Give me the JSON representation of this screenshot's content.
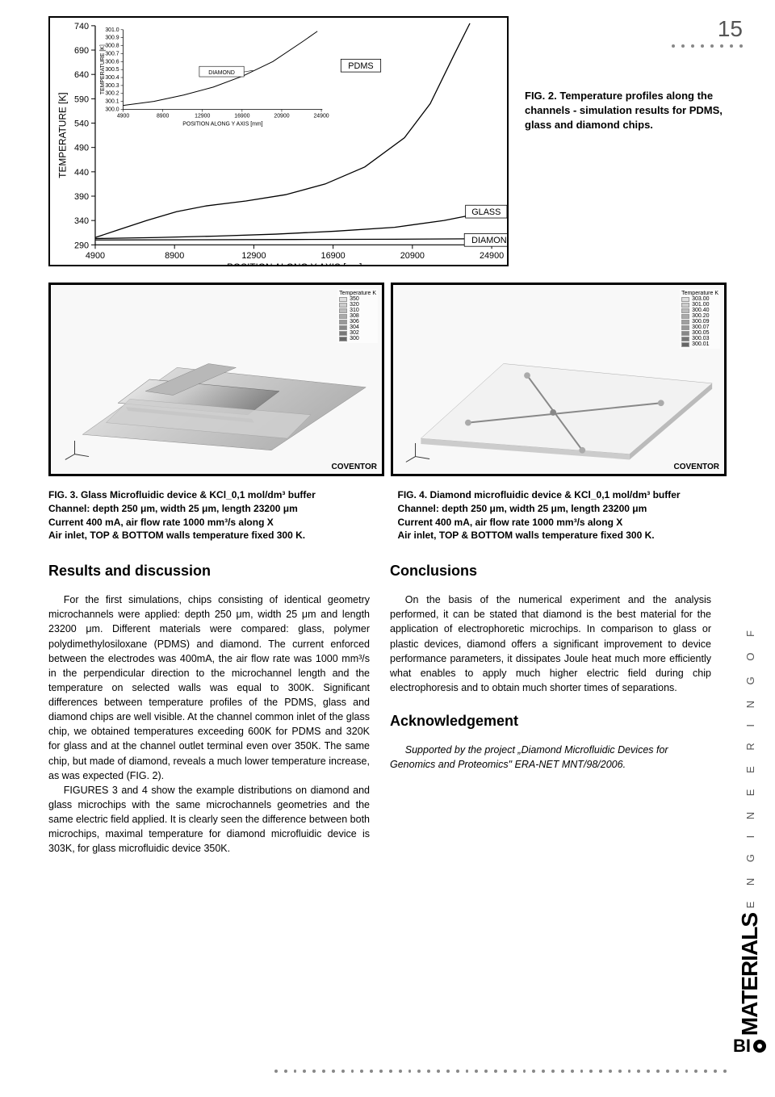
{
  "page_number": "15",
  "fig2": {
    "caption": "FIG. 2. Temperature profiles along the channels - simulation results for PDMS, glass and diamond chips.",
    "ylabel": "TEMPERATURE [K]",
    "xlabel": "POSITION ALONG Y AXIS [μm]",
    "x_ticks": [
      "4900",
      "8900",
      "12900",
      "16900",
      "20900",
      "24900"
    ],
    "y_ticks": [
      "290",
      "340",
      "390",
      "440",
      "490",
      "540",
      "590",
      "640",
      "690",
      "740"
    ],
    "xlim": [
      4900,
      25000
    ],
    "ylim": [
      290,
      740
    ],
    "annotations": [
      "PDMS",
      "GLASS",
      "DIAMOND"
    ],
    "pdms_curve": [
      [
        4900,
        305
      ],
      [
        6000,
        320
      ],
      [
        7500,
        340
      ],
      [
        9000,
        358
      ],
      [
        10500,
        370
      ],
      [
        12500,
        380
      ],
      [
        14500,
        393
      ],
      [
        16500,
        415
      ],
      [
        18500,
        450
      ],
      [
        20500,
        510
      ],
      [
        21800,
        580
      ],
      [
        23000,
        680
      ],
      [
        23800,
        745
      ]
    ],
    "glass_curve": [
      [
        4900,
        303
      ],
      [
        8000,
        305
      ],
      [
        11000,
        308
      ],
      [
        14000,
        312
      ],
      [
        17000,
        318
      ],
      [
        20000,
        326
      ],
      [
        22500,
        340
      ],
      [
        24000,
        352
      ]
    ],
    "diamond_curve": [
      [
        4900,
        300
      ],
      [
        10000,
        300.5
      ],
      [
        15000,
        301
      ],
      [
        20000,
        301.5
      ],
      [
        24500,
        302.5
      ]
    ],
    "line_color": "#000000",
    "grid_color": "#666666",
    "background_color": "#ffffff",
    "inset": {
      "ylabel": "TEMPERATURE [K]",
      "xlabel": "POSITION ALONG Y AXIS [mm]",
      "x_ticks": [
        "4900",
        "8900",
        "12900",
        "16900",
        "20900",
        "24900"
      ],
      "y_ticks": [
        "300.0",
        "300.1",
        "300.2",
        "300.3",
        "300.4",
        "300.5",
        "300.6",
        "300.7",
        "300.8",
        "300.9",
        "301.0"
      ],
      "xlim": [
        4900,
        25000
      ],
      "ylim": [
        300.0,
        301.0
      ],
      "diamond_label": "DIAMOND",
      "curve": [
        [
          4900,
          300.05
        ],
        [
          8000,
          300.1
        ],
        [
          11000,
          300.18
        ],
        [
          14000,
          300.28
        ],
        [
          17000,
          300.42
        ],
        [
          20000,
          300.6
        ],
        [
          23000,
          300.85
        ],
        [
          24500,
          300.98
        ]
      ]
    }
  },
  "fig3": {
    "title": "FIG. 3. Glass Microfluidic device & KCl_0,1 mol/dm³ buffer",
    "line1": "Channel: depth 250 μm, width 25 μm, length 23200 μm",
    "line2": "Current 400 mA, air flow rate 1000 mm³/s along X",
    "line3": "Air inlet, TOP & BOTTOM walls temperature fixed 300 K.",
    "watermark": "COVENTOR",
    "legend_title": "Temperature    K",
    "legend_vals": [
      "350",
      "320",
      "310",
      "308",
      "306",
      "304",
      "302",
      "300"
    ],
    "legend_colors": [
      "#dddddd",
      "#cccccc",
      "#bbbbbb",
      "#aaaaaa",
      "#999999",
      "#888888",
      "#777777",
      "#666666"
    ]
  },
  "fig4": {
    "title": "FIG. 4. Diamond microfluidic device & KCl_0,1 mol/dm³ buffer",
    "line1": "Channel: depth 250 μm, width 25 μm, length 23200 μm",
    "line2": "Current 400 mA, air flow rate 1000 mm³/s along X",
    "line3": "Air inlet, TOP & BOTTOM walls temperature fixed 300 K.",
    "watermark": "COVENTOR",
    "legend_title": "Temperature    K",
    "legend_vals": [
      "303.00",
      "301.00",
      "300.40",
      "300.20",
      "300.09",
      "300.07",
      "300.05",
      "300.03",
      "300.01"
    ],
    "legend_colors": [
      "#dddddd",
      "#cccccc",
      "#bbbbbb",
      "#aaaaaa",
      "#a0a0a0",
      "#999999",
      "#888888",
      "#777777",
      "#666666"
    ]
  },
  "left_col": {
    "heading": "Results and discussion",
    "p1": "For the first simulations, chips consisting of identical geometry microchannels were applied: depth 250 μm, width 25 μm and length 23200 μm. Different materials were compared: glass, polymer polydimethylosiloxane (PDMS) and diamond. The current enforced between the electrodes was 400mA, the air flow rate was 1000 mm³/s in the perpendicular direction to the microchannel length and the temperature on selected walls was equal to 300K. Significant differences between temperature profiles of the PDMS, glass and diamond chips are well visible. At the channel common inlet of the glass chip, we obtained temperatures exceeding 600K for PDMS and 320K for glass and at the channel outlet terminal even over 350K. The same chip, but made of diamond, reveals a much lower temperature increase, as was expected (FIG. 2).",
    "p2": "FIGURES 3 and 4 show the example distributions on diamond and glass microchips with the same microchannels geometries and the same electric field applied. It is clearly seen the difference between both microchips, maximal temperature for diamond microfluidic device is 303K, for glass microfluidic device 350K."
  },
  "right_col": {
    "heading1": "Conclusions",
    "p1": "On the basis of the numerical experiment and the analysis performed, it can be stated that diamond is the best material for the application of electrophoretic microchips. In comparison to glass or plastic devices, diamond offers a significant improvement to device performance parameters, it dissipates Joule heat much more efficiently what enables to apply much higher electric field during chip electrophoresis and to obtain much shorter times of separations.",
    "heading2": "Acknowledgement",
    "p2": "Supported by the project „Diamond Microfluidic Devices for Genomics and Proteomics\" ERA-NET MNT/98/2006."
  },
  "sidebar": {
    "top_text": "E N G I N E E R I N G   O F",
    "materials": "MATERIALS",
    "bi": "BI"
  }
}
